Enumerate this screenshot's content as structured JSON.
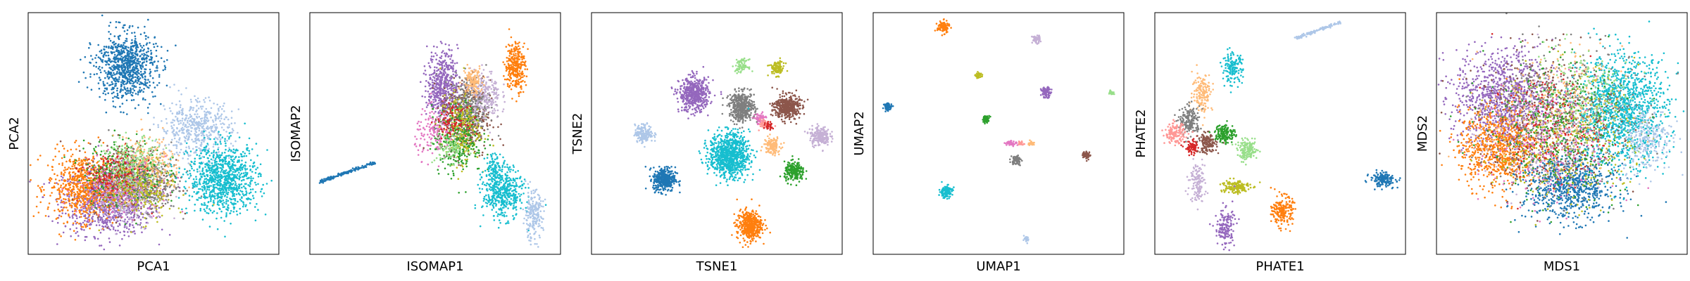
{
  "figure": {
    "palette": {
      "blue": "#1f77b4",
      "orange": "#ff7f0e",
      "green": "#2ca02c",
      "red": "#d62728",
      "purple": "#9467bd",
      "brown": "#8c564b",
      "pink": "#e377c2",
      "gray": "#7f7f7f",
      "olive": "#bcbd22",
      "cyan": "#17becf",
      "light_blue": "#aec7e8",
      "light_orange": "#ffbb78",
      "light_green": "#98df8a",
      "light_red": "#ff9896",
      "light_purple": "#c5b0d5",
      "light_brown": "#c49c94"
    }
  },
  "chart_data": [
    {
      "type": "scatter",
      "method": "PCA",
      "xlabel": "PCA1",
      "ylabel": "PCA2",
      "xlim": [
        0,
        100
      ],
      "ylim": [
        0,
        100
      ],
      "grid": false,
      "ticks": false,
      "legend": false,
      "clusters": [
        {
          "color": "purple",
          "x": 32,
          "y": 22,
          "sx": 9,
          "sy": 7,
          "n": 950
        },
        {
          "color": "orange",
          "x": 22,
          "y": 28,
          "sx": 7,
          "sy": 7,
          "n": 700
        },
        {
          "color": "brown",
          "x": 40,
          "y": 32,
          "sx": 8,
          "sy": 7,
          "n": 350
        },
        {
          "color": "gray",
          "x": 46,
          "y": 30,
          "sx": 7,
          "sy": 6,
          "n": 350
        },
        {
          "color": "green",
          "x": 38,
          "y": 34,
          "sx": 8,
          "sy": 7,
          "n": 300
        },
        {
          "color": "light_orange",
          "x": 48,
          "y": 36,
          "sx": 7,
          "sy": 6,
          "n": 260
        },
        {
          "color": "pink",
          "x": 36,
          "y": 28,
          "sx": 8,
          "sy": 6,
          "n": 200
        },
        {
          "color": "red",
          "x": 34,
          "y": 32,
          "sx": 6,
          "sy": 5,
          "n": 150
        },
        {
          "color": "olive",
          "x": 44,
          "y": 26,
          "sx": 7,
          "sy": 6,
          "n": 220
        },
        {
          "color": "light_green",
          "x": 42,
          "y": 38,
          "sx": 6,
          "sy": 5,
          "n": 150
        },
        {
          "color": "light_purple",
          "x": 40,
          "y": 22,
          "sx": 8,
          "sy": 5,
          "n": 150
        },
        {
          "color": "light_blue",
          "x": 67,
          "y": 52,
          "sx": 7,
          "sy": 6,
          "n": 500
        },
        {
          "color": "cyan",
          "x": 78,
          "y": 31,
          "sx": 7,
          "sy": 7,
          "n": 950
        },
        {
          "color": "blue",
          "x": 39,
          "y": 78,
          "sx": 6,
          "sy": 7,
          "n": 850
        }
      ]
    },
    {
      "type": "scatter",
      "method": "ISOMAP",
      "xlabel": "ISOMAP1",
      "ylabel": "ISOMAP2",
      "xlim": [
        0,
        100
      ],
      "ylim": [
        0,
        100
      ],
      "grid": false,
      "ticks": false,
      "legend": false,
      "clusters": [
        {
          "color": "purple",
          "x": 53,
          "y": 70,
          "sx": 3,
          "sy": 7,
          "n": 500
        },
        {
          "color": "brown",
          "x": 62,
          "y": 56,
          "sx": 5,
          "sy": 8,
          "n": 400
        },
        {
          "color": "gray",
          "x": 64,
          "y": 62,
          "sx": 4,
          "sy": 6,
          "n": 300
        },
        {
          "color": "olive",
          "x": 60,
          "y": 52,
          "sx": 4,
          "sy": 7,
          "n": 250
        },
        {
          "color": "green",
          "x": 59,
          "y": 47,
          "sx": 5,
          "sy": 7,
          "n": 250
        },
        {
          "color": "light_purple",
          "x": 70,
          "y": 66,
          "sx": 3,
          "sy": 5,
          "n": 200
        },
        {
          "color": "pink",
          "x": 50,
          "y": 50,
          "sx": 4,
          "sy": 5,
          "n": 150
        },
        {
          "color": "light_orange",
          "x": 65,
          "y": 72,
          "sx": 2,
          "sy": 3,
          "n": 120
        },
        {
          "color": "red",
          "x": 57,
          "y": 55,
          "sx": 3,
          "sy": 3,
          "n": 80
        },
        {
          "color": "light_green",
          "x": 56,
          "y": 44,
          "sx": 3,
          "sy": 3,
          "n": 80
        },
        {
          "color": "cyan",
          "x": 77,
          "y": 25,
          "sx": 4,
          "sy": 5,
          "n": 450
        },
        {
          "color": "cyan",
          "x": 74,
          "y": 36,
          "sx": 2,
          "sy": 3,
          "n": 100
        },
        {
          "color": "orange",
          "x": 82,
          "y": 78,
          "sx": 2,
          "sy": 5,
          "n": 300
        },
        {
          "color": "light_blue",
          "x": 89,
          "y": 16,
          "sx": 2,
          "sy": 5,
          "n": 200
        }
      ],
      "lines": [
        {
          "color": "blue",
          "x0": 4,
          "y0": 30,
          "x1": 26,
          "y1": 38,
          "n": 160
        }
      ]
    },
    {
      "type": "scatter",
      "method": "TSNE",
      "xlabel": "TSNE1",
      "ylabel": "TSNE2",
      "xlim": [
        0,
        100
      ],
      "ylim": [
        0,
        100
      ],
      "grid": false,
      "ticks": false,
      "legend": false,
      "clusters": [
        {
          "color": "purple",
          "x": 41,
          "y": 66,
          "sx": 3,
          "sy": 3.5,
          "n": 520
        },
        {
          "color": "gray",
          "x": 60,
          "y": 61,
          "sx": 2.5,
          "sy": 3,
          "n": 450
        },
        {
          "color": "brown",
          "x": 78,
          "y": 61,
          "sx": 2.5,
          "sy": 2.5,
          "n": 420
        },
        {
          "color": "cyan",
          "x": 55,
          "y": 41,
          "sx": 4,
          "sy": 4.5,
          "n": 900
        },
        {
          "color": "blue",
          "x": 29,
          "y": 31,
          "sx": 2.2,
          "sy": 2.5,
          "n": 380
        },
        {
          "color": "orange",
          "x": 63,
          "y": 12,
          "sx": 2.5,
          "sy": 3,
          "n": 450
        },
        {
          "color": "light_blue",
          "x": 21,
          "y": 50,
          "sx": 1.8,
          "sy": 1.8,
          "n": 180
        },
        {
          "color": "light_purple",
          "x": 91,
          "y": 49,
          "sx": 2,
          "sy": 2,
          "n": 200
        },
        {
          "color": "green",
          "x": 81,
          "y": 34,
          "sx": 2,
          "sy": 2,
          "n": 200
        },
        {
          "color": "light_orange",
          "x": 72,
          "y": 45,
          "sx": 1.6,
          "sy": 1.8,
          "n": 140
        },
        {
          "color": "light_green",
          "x": 60,
          "y": 78,
          "sx": 1.3,
          "sy": 1.3,
          "n": 80
        },
        {
          "color": "olive",
          "x": 74,
          "y": 77,
          "sx": 1.5,
          "sy": 1.5,
          "n": 100
        },
        {
          "color": "pink",
          "x": 67,
          "y": 56,
          "sx": 1.2,
          "sy": 1.2,
          "n": 60
        },
        {
          "color": "light_red",
          "x": 69,
          "y": 54,
          "sx": 1,
          "sy": 1,
          "n": 40
        },
        {
          "color": "red",
          "x": 71,
          "y": 53,
          "sx": 0.8,
          "sy": 0.8,
          "n": 30
        }
      ]
    },
    {
      "type": "scatter",
      "method": "UMAP",
      "xlabel": "UMAP1",
      "ylabel": "UMAP2",
      "xlim": [
        0,
        100
      ],
      "ylim": [
        0,
        100
      ],
      "grid": false,
      "ticks": false,
      "legend": false,
      "clusters": [
        {
          "color": "orange",
          "x": 28,
          "y": 94,
          "sx": 1.2,
          "sy": 1.2,
          "n": 120
        },
        {
          "color": "light_purple",
          "x": 65,
          "y": 89,
          "sx": 0.8,
          "sy": 0.8,
          "n": 60
        },
        {
          "color": "olive",
          "x": 42,
          "y": 74,
          "sx": 0.6,
          "sy": 0.6,
          "n": 40
        },
        {
          "color": "purple",
          "x": 69,
          "y": 67,
          "sx": 1,
          "sy": 1,
          "n": 80
        },
        {
          "color": "light_green",
          "x": 95,
          "y": 67,
          "sx": 0.5,
          "sy": 0.5,
          "n": 25
        },
        {
          "color": "blue",
          "x": 6,
          "y": 61,
          "sx": 0.8,
          "sy": 0.8,
          "n": 60
        },
        {
          "color": "green",
          "x": 45,
          "y": 56,
          "sx": 0.7,
          "sy": 0.7,
          "n": 50
        },
        {
          "color": "pink",
          "x": 55,
          "y": 46,
          "sx": 1.2,
          "sy": 0.5,
          "n": 40
        },
        {
          "color": "light_red",
          "x": 59,
          "y": 46,
          "sx": 0.6,
          "sy": 0.4,
          "n": 20
        },
        {
          "color": "light_orange",
          "x": 63,
          "y": 46,
          "sx": 0.6,
          "sy": 0.5,
          "n": 30
        },
        {
          "color": "brown",
          "x": 85,
          "y": 41,
          "sx": 0.8,
          "sy": 0.8,
          "n": 50
        },
        {
          "color": "gray",
          "x": 57,
          "y": 39,
          "sx": 1,
          "sy": 1,
          "n": 70
        },
        {
          "color": "cyan",
          "x": 29,
          "y": 26,
          "sx": 1.3,
          "sy": 1.3,
          "n": 120
        },
        {
          "color": "light_blue",
          "x": 61,
          "y": 6,
          "sx": 0.6,
          "sy": 0.6,
          "n": 25
        }
      ]
    },
    {
      "type": "scatter",
      "method": "PHATE",
      "xlabel": "PHATE1",
      "ylabel": "PHATE2",
      "xlim": [
        0,
        100
      ],
      "ylim": [
        0,
        100
      ],
      "grid": false,
      "ticks": false,
      "legend": false,
      "clusters": [
        {
          "color": "cyan",
          "x": 31,
          "y": 77,
          "sx": 2,
          "sy": 3,
          "n": 150
        },
        {
          "color": "light_orange",
          "x": 19,
          "y": 67,
          "sx": 2,
          "sy": 4,
          "n": 150
        },
        {
          "color": "gray",
          "x": 14,
          "y": 55,
          "sx": 2,
          "sy": 3,
          "n": 180
        },
        {
          "color": "light_red",
          "x": 8,
          "y": 50,
          "sx": 2,
          "sy": 2,
          "n": 150
        },
        {
          "color": "red",
          "x": 15,
          "y": 44,
          "sx": 1.5,
          "sy": 1.5,
          "n": 80
        },
        {
          "color": "brown",
          "x": 21,
          "y": 46,
          "sx": 1.8,
          "sy": 2,
          "n": 150
        },
        {
          "color": "green",
          "x": 28,
          "y": 50,
          "sx": 2,
          "sy": 2,
          "n": 150
        },
        {
          "color": "light_green",
          "x": 37,
          "y": 43,
          "sx": 2,
          "sy": 2,
          "n": 150
        },
        {
          "color": "light_purple",
          "x": 17,
          "y": 30,
          "sx": 1.5,
          "sy": 4,
          "n": 130
        },
        {
          "color": "olive",
          "x": 32,
          "y": 28,
          "sx": 3,
          "sy": 1.5,
          "n": 150
        },
        {
          "color": "orange",
          "x": 51,
          "y": 18,
          "sx": 2,
          "sy": 3,
          "n": 200
        },
        {
          "color": "purple",
          "x": 28,
          "y": 11,
          "sx": 2,
          "sy": 4,
          "n": 150
        },
        {
          "color": "blue",
          "x": 91,
          "y": 31,
          "sx": 2.5,
          "sy": 1.5,
          "n": 160
        }
      ],
      "lines": [
        {
          "color": "light_blue",
          "x0": 55,
          "y0": 89,
          "x1": 74,
          "y1": 96,
          "n": 120
        }
      ]
    },
    {
      "type": "scatter",
      "method": "MDS",
      "xlabel": "MDS1",
      "ylabel": "MDS2",
      "xlim": [
        0,
        100
      ],
      "ylim": [
        0,
        100
      ],
      "grid": false,
      "ticks": false,
      "legend": false,
      "clusters": [
        {
          "color": "purple",
          "x": 27,
          "y": 65,
          "sx": 10,
          "sy": 10,
          "n": 1000
        },
        {
          "color": "orange",
          "x": 25,
          "y": 44,
          "sx": 8,
          "sy": 8,
          "n": 800
        },
        {
          "color": "blue",
          "x": 53,
          "y": 28,
          "sx": 9,
          "sy": 7,
          "n": 800
        },
        {
          "color": "cyan",
          "x": 74,
          "y": 60,
          "sx": 9,
          "sy": 11,
          "n": 1300
        },
        {
          "color": "brown",
          "x": 45,
          "y": 55,
          "sx": 14,
          "sy": 14,
          "n": 400
        },
        {
          "color": "gray",
          "x": 50,
          "y": 58,
          "sx": 14,
          "sy": 14,
          "n": 400
        },
        {
          "color": "green",
          "x": 48,
          "y": 52,
          "sx": 14,
          "sy": 14,
          "n": 400
        },
        {
          "color": "olive",
          "x": 52,
          "y": 48,
          "sx": 14,
          "sy": 14,
          "n": 350
        },
        {
          "color": "pink",
          "x": 45,
          "y": 45,
          "sx": 13,
          "sy": 13,
          "n": 250
        },
        {
          "color": "light_orange",
          "x": 48,
          "y": 60,
          "sx": 13,
          "sy": 13,
          "n": 250
        },
        {
          "color": "light_blue",
          "x": 84,
          "y": 48,
          "sx": 5,
          "sy": 7,
          "n": 250
        },
        {
          "color": "red",
          "x": 44,
          "y": 52,
          "sx": 11,
          "sy": 11,
          "n": 150
        },
        {
          "color": "light_green",
          "x": 58,
          "y": 68,
          "sx": 10,
          "sy": 10,
          "n": 150
        },
        {
          "color": "light_purple",
          "x": 36,
          "y": 48,
          "sx": 12,
          "sy": 12,
          "n": 150
        }
      ]
    }
  ]
}
